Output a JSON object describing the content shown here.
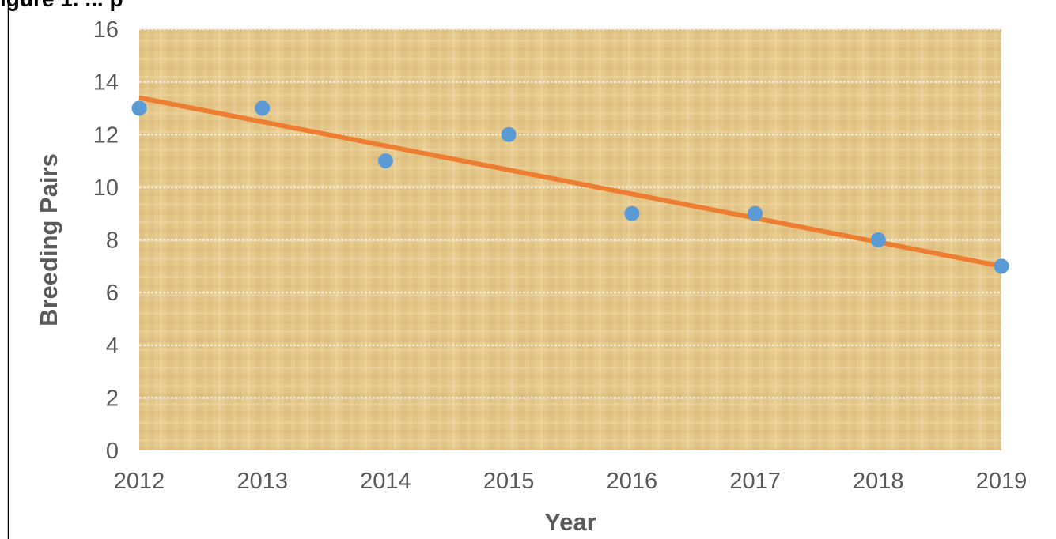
{
  "header": {
    "partial_text": "igure 1. ... p"
  },
  "chart_data": {
    "type": "scatter",
    "title": "",
    "xlabel": "Year",
    "ylabel": "Breeding Pairs",
    "x": [
      2012,
      2013,
      2014,
      2015,
      2016,
      2017,
      2018,
      2019
    ],
    "x_tick_labels": [
      "2012",
      "2013",
      "2014",
      "2015",
      "2016",
      "2017",
      "2018",
      "2019"
    ],
    "y_ticks": [
      0,
      2,
      4,
      6,
      8,
      10,
      12,
      14,
      16
    ],
    "y_tick_labels": [
      "0",
      "2",
      "4",
      "6",
      "8",
      "10",
      "12",
      "14",
      "16"
    ],
    "xlim": [
      2012,
      2019
    ],
    "ylim": [
      0,
      16
    ],
    "grid": "horizontal",
    "legend": "none",
    "series": [
      {
        "type": "scatter",
        "values": [
          13,
          13,
          11,
          12,
          9,
          9,
          8,
          7
        ],
        "color": "#5b9bd5"
      },
      {
        "type": "line",
        "trendline": "linear",
        "x": [
          2012,
          2019
        ],
        "values": [
          13.4,
          7.0
        ],
        "color": "#ed7d31"
      }
    ],
    "background_color": "#e6c98d"
  }
}
